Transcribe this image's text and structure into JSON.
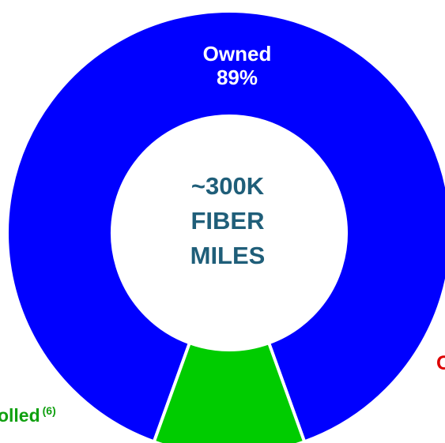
{
  "colors": {
    "owned": "#0000ff",
    "controlled": "#00cc00",
    "center_text": "#1f5e79",
    "controlled_text": "#10a010",
    "other_text": "#dd0000",
    "owned_text": "#ffffff"
  },
  "chart_data": {
    "type": "pie",
    "donut": true,
    "center_label": [
      "~300K",
      "FIBER",
      "MILES"
    ],
    "slices": [
      {
        "name": "Owned",
        "value": 89,
        "value_label": "89%",
        "color": "#0000ff"
      },
      {
        "name": "Controlled",
        "value": 11,
        "color": "#00cc00",
        "footnote": "(6)"
      }
    ],
    "visible_label_fragments": {
      "controlled": "rolled",
      "controlled_footnote": "(6)",
      "other": "O"
    }
  }
}
